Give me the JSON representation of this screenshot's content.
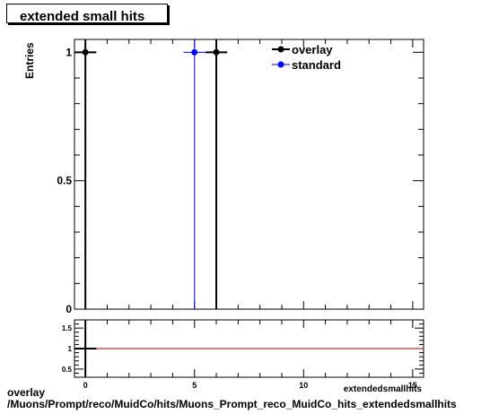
{
  "chart_data": {
    "type": "scatter",
    "title": "extended small hits",
    "ylabel": "Entries",
    "xlabel": "extendedsmallhits",
    "xlim": [
      -0.5,
      15.5
    ],
    "ylim": [
      0,
      1.05
    ],
    "x_ticks": [
      0,
      5,
      10,
      15
    ],
    "x_tick_labels": [
      "0",
      "5",
      "10",
      "15"
    ],
    "y_ticks": [
      0,
      0.5,
      1
    ],
    "y_tick_labels": [
      "0",
      "0.5",
      "1"
    ],
    "legend_position": "top-right",
    "series": [
      {
        "name": "overlay",
        "color": "#000000",
        "points": [
          {
            "x": 0,
            "y": 1,
            "xerr": 0.5
          },
          {
            "x": 6,
            "y": 1,
            "xerr": 0.5
          }
        ]
      },
      {
        "name": "standard",
        "color": "#0000ff",
        "points": [
          {
            "x": 5,
            "y": 1,
            "xerr": 0.5
          }
        ]
      }
    ],
    "ratio": {
      "ylim": [
        0.3,
        1.7
      ],
      "y_ticks": [
        0.5,
        1,
        1.5
      ],
      "y_tick_labels": [
        "0.5",
        "1",
        "1.5"
      ],
      "line_value": 1,
      "line_color": "#990000",
      "points": [
        {
          "x": 0,
          "y": 1,
          "xerr": 0.5
        }
      ]
    }
  },
  "footer": {
    "line1": "overlay",
    "line2": "/Muons/Prompt/reco/MuidCo/hits/Muons_Prompt_reco_MuidCo_hits_extendedsmallhits"
  }
}
